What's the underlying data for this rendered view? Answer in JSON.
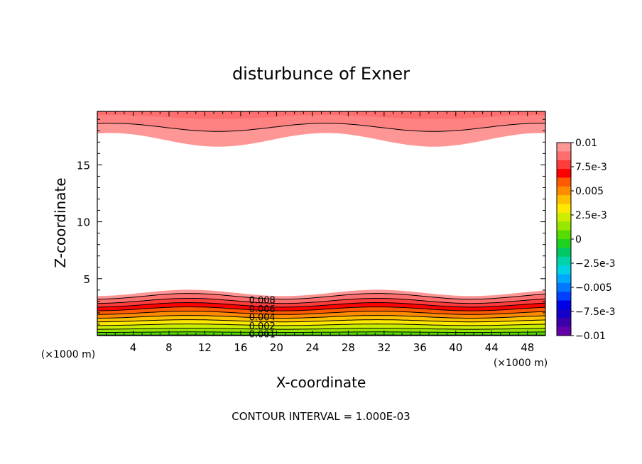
{
  "chart_data": {
    "type": "heatmap",
    "title": "disturbunce of Exner",
    "xlabel": "X-coordinate",
    "ylabel": "Z-coordinate",
    "x_unit": "(×1000 m)",
    "x_unit_left": "(×1000 m)",
    "xlim": [
      0,
      50
    ],
    "ylim": [
      0,
      19.7
    ],
    "x_ticks": [
      "4",
      "8",
      "12",
      "16",
      "20",
      "24",
      "28",
      "32",
      "36",
      "40",
      "44",
      "48"
    ],
    "y_ticks": [
      "5",
      "10",
      "15"
    ],
    "footer": "CONTOUR INTERVAL = 1.000E-03",
    "contour_labels": [
      {
        "text": "0.008",
        "x": 18.4,
        "z": 3.1
      },
      {
        "text": "0.006",
        "x": 18.4,
        "z": 2.3
      },
      {
        "text": "0.004",
        "x": 18.4,
        "z": 1.6
      },
      {
        "text": "0.002",
        "x": 18.4,
        "z": 0.8
      },
      {
        "text": "0.001",
        "x": 18.4,
        "z": 0.1
      }
    ],
    "colorbar": {
      "labels": [
        "0.01",
        "7.5e-3",
        "0.005",
        "2.5e-3",
        "0",
        "−2.5e-3",
        "−0.005",
        "−7.5e-3",
        "−0.01"
      ],
      "colors_top_to_bottom": [
        "#ff9696",
        "#ff6e6e",
        "#ff3c3c",
        "#ff0000",
        "#ff5a00",
        "#ff8c00",
        "#ffc000",
        "#ffe800",
        "#ccee00",
        "#99e600",
        "#55dc00",
        "#1ed21e",
        "#00c864",
        "#00d2aa",
        "#00d2e6",
        "#00aaff",
        "#0078ff",
        "#0040ff",
        "#0000e6",
        "#1400c8",
        "#3c00aa",
        "#6400aa"
      ]
    },
    "bottom_bands_top_to_bottom": [
      "#ff9696",
      "#ff6e6e",
      "#ff3c3c",
      "#ff0000",
      "#ff5a00",
      "#ff8c00",
      "#ffc000",
      "#ffe800",
      "#ccee00",
      "#99e600",
      "#55dc00",
      "#1ed21e"
    ],
    "top_bands_top_to_bottom": [
      "#ff6e6e",
      "#ff8282",
      "#ff9696"
    ]
  }
}
